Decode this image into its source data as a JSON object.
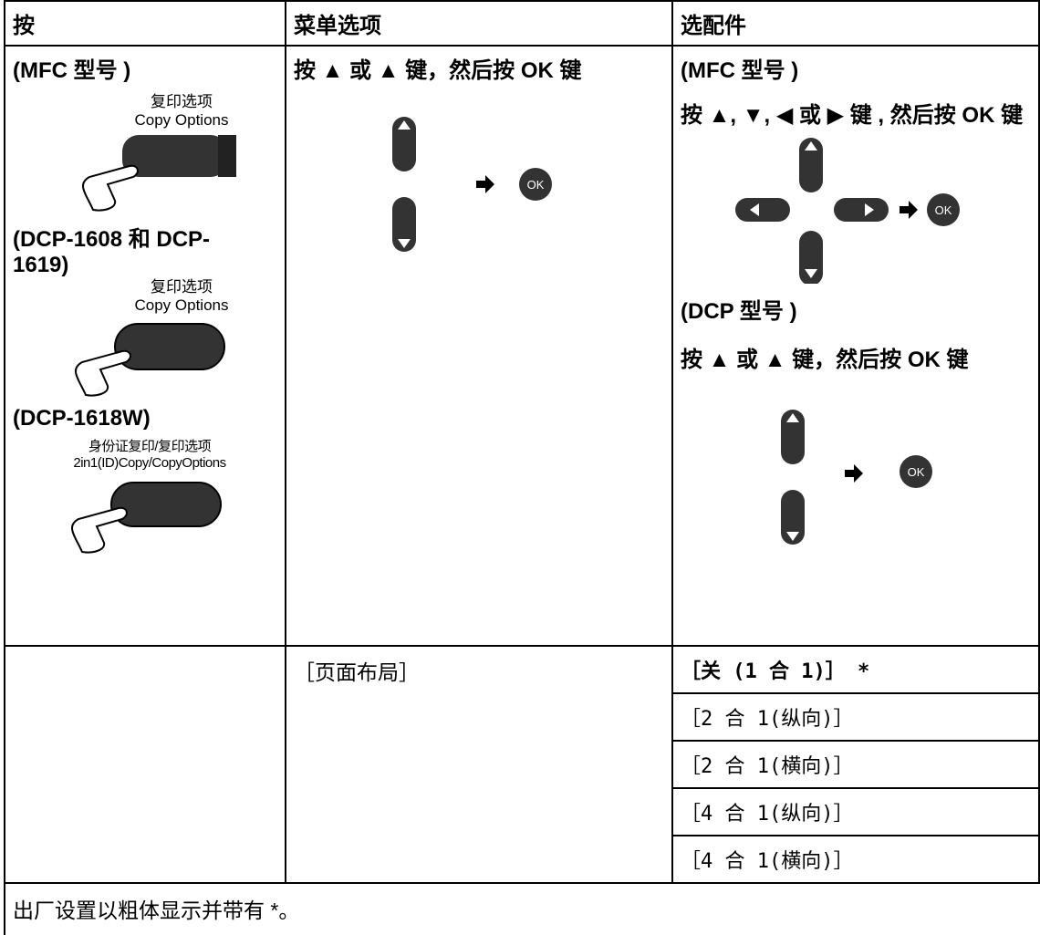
{
  "header": {
    "columns": [
      "按",
      "菜单选项",
      "选配件"
    ]
  },
  "press": [
    {
      "label": "(MFC 型号 )",
      "button_cn": "复印选项",
      "button_en": "Copy Options"
    },
    {
      "label": "(DCP-1608 和 DCP-1619)",
      "button_cn": "复印选项",
      "button_en": "Copy Options"
    },
    {
      "label": "(DCP-1618W)",
      "button_cn": "身份证复印/复印选项",
      "button_en": "2in1(ID)Copy/CopyOptions"
    }
  ],
  "menu": {
    "instruction": "按 ▲ 或 ▲ 键，然后按 OK 键",
    "ok": "OK"
  },
  "options_cell": {
    "mfc_label": "(MFC 型号 )",
    "mfc_instruction": "按 ▲, ▼, ◀ 或 ▶ 键 , 然后按 OK 键",
    "mfc_ok": "OK",
    "dcp_label": "(DCP 型号 )",
    "dcp_instruction": "按 ▲ 或 ▲ 键，然后按 OK 键",
    "dcp_ok": "OK"
  },
  "setting": {
    "name": "［页面布局］",
    "options": [
      "［关 (1 合 1)］ *",
      "［2 合 1(纵向)］",
      "［2 合 1(横向)］",
      "［4 合 1(纵向)］",
      "［4 合 1(横向)］"
    ]
  },
  "footnote": "出厂设置以粗体显示并带有 *。"
}
